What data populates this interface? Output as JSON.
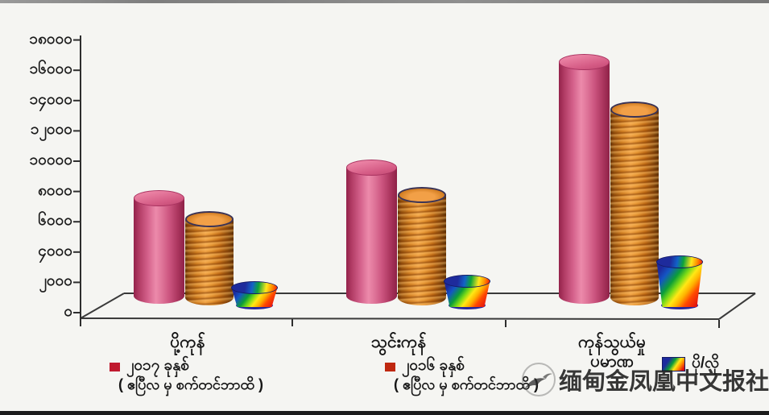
{
  "page": {
    "background": "#f5f5f2",
    "top_border_color": "#8a8a8a",
    "bottom_border_color": "#1c1c1c"
  },
  "chart_data": {
    "type": "bar",
    "style": "3d-cylinder",
    "title": "",
    "xlabel": "",
    "ylabel": "",
    "categories": [
      "ပို့ကုန်",
      "သွင်းကုန်",
      "ကုန်သွယ်မှု ပမာဏ"
    ],
    "category_lines": [
      [
        "ပို့ကုန်"
      ],
      [
        "သွင်းကုန်"
      ],
      [
        "ကုန်သွယ်မှု",
        "ပမာဏ"
      ]
    ],
    "series": [
      {
        "name": "၂၀၁၇ ခုနှစ်",
        "note": "( ဧပြီလ မှ စက်တင်ဘာထိ )",
        "legend_color": "#c01a2e",
        "shape": "cylinder-pink",
        "bar_color": "#d9497b",
        "values": [
          7000,
          9000,
          16000
        ]
      },
      {
        "name": "၂၀၁၆ ခုနှစ်",
        "note": "( ဧပြီလ မှ စက်တင်ဘာထိ )",
        "legend_color": "#bf2810",
        "shape": "cylinder-orange",
        "bar_color": "#e08a2a",
        "values": [
          5700,
          7300,
          13000
        ]
      },
      {
        "name": "ပို/လို",
        "note": "",
        "legend_color": "rainbow",
        "shape": "cone-rainbow",
        "bar_color": "rainbow(blue,green,yellow,red)",
        "values": [
          1300,
          1700,
          3000
        ]
      }
    ],
    "ylim": [
      0,
      18000
    ],
    "ytick_values": [
      0,
      2000,
      4000,
      6000,
      8000,
      10000,
      12000,
      14000,
      16000,
      18000
    ],
    "ytick_labels": [
      "၀",
      "၂၀၀၀",
      "၄၀၀၀",
      "၆၀၀၀",
      "၈၀၀၀",
      "၁၀၀၀၀",
      "၁၂၀၀၀",
      "၁၄၀၀၀",
      "၁၆၀၀၀",
      "၁၈၀၀၀"
    ],
    "grid": false,
    "legend_position": "bottom"
  },
  "watermark": {
    "logo": "phoenix-logo",
    "text": "缅甸金凤凰中文报社"
  }
}
